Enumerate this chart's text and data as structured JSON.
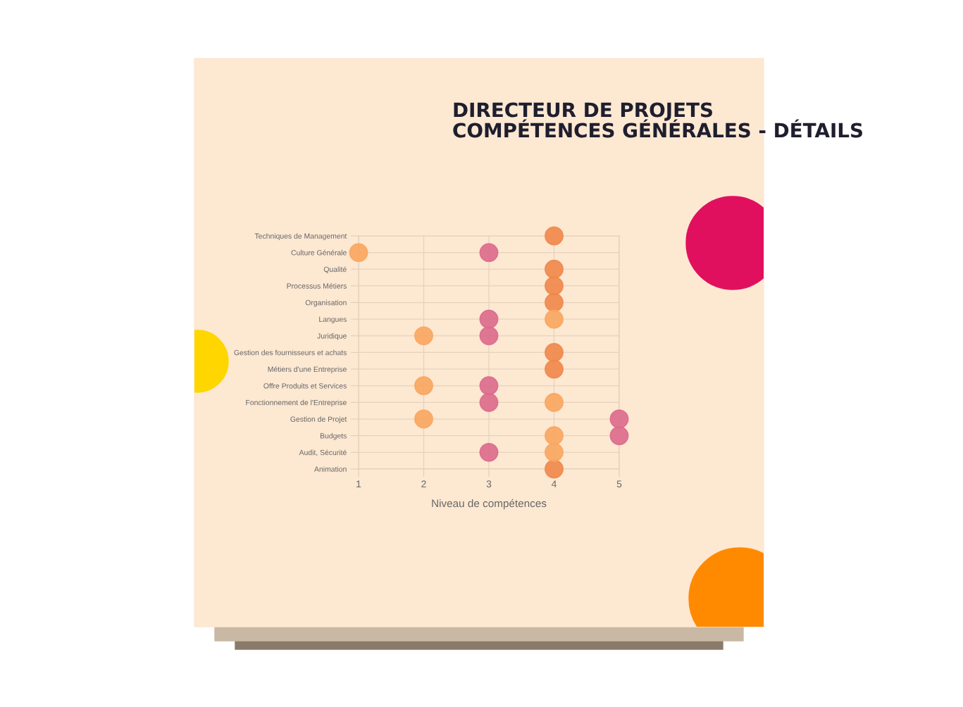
{
  "chart_data": {
    "type": "scatter",
    "orientation": "horizontal",
    "title": "DIRECTEUR DE PROJETS",
    "subtitle": "COMPÉTENCES GÉNÉRALES - DÉTAILS",
    "xlabel": "Niveau de compétences",
    "categories": [
      "Techniques de Management",
      "Culture Générale",
      "Qualité",
      "Processus Métiers",
      "Organisation",
      "Langues",
      "Juridique",
      "Gestion des fournisseurs et achats",
      "Métiers d'une Entreprise",
      "Offre Produits et Services",
      "Fonctionnement de l'Entreprise",
      "Gestion de Projet",
      "Budgets",
      "Audit, Sécurité",
      "Animation"
    ],
    "series": [
      {
        "color": "#f0874a",
        "values": [
          4,
          null,
          4,
          4,
          4,
          null,
          null,
          4,
          4,
          null,
          null,
          null,
          null,
          null,
          4
        ]
      },
      {
        "color": "#f9a65e",
        "values": [
          null,
          1,
          null,
          null,
          null,
          4,
          2,
          null,
          null,
          2,
          4,
          2,
          4,
          4,
          null
        ]
      },
      {
        "color": "#dc6a8c",
        "values": [
          null,
          3,
          null,
          null,
          null,
          3,
          3,
          null,
          null,
          3,
          3,
          5,
          5,
          3,
          null
        ]
      }
    ],
    "xlim": [
      1,
      5
    ],
    "xticks": [
      1,
      2,
      3,
      4,
      5
    ],
    "grid": true,
    "legend": false,
    "marker": "circle"
  }
}
